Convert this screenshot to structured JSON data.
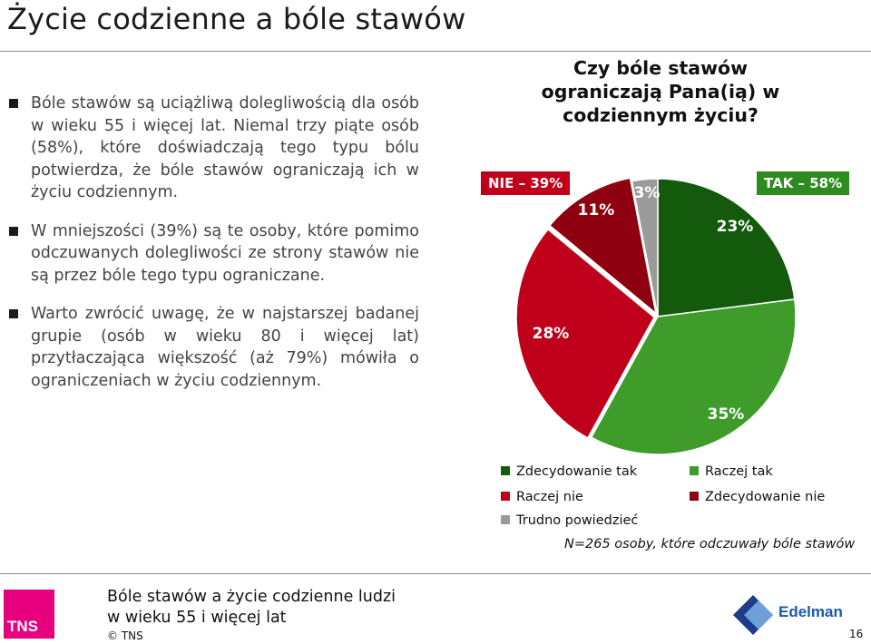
{
  "title": "Życie codzienne a bóle stawów",
  "bullets": [
    "Bóle stawów są uciążliwą dolegliwością dla osób w wieku 55 i więcej lat. Niemal trzy piąte osób (58%), które doświadczają tego typu bólu potwierdza, że bóle stawów ograniczają ich w życiu codziennym.",
    "W mniejszości (39%) są te osoby, które pomimo odczuwanych dolegliwości ze strony stawów nie są przez bóle tego typu ograniczane.",
    "Warto zwrócić uwagę, że w najstarszej badanej grupie (osób w wieku 80 i więcej lat) przytłaczająca większość (aż 79%) mówiła o ograniczeniach w życiu codziennym."
  ],
  "chart_data": {
    "type": "pie",
    "title": "Czy bóle stawów ograniczają Pana(ią) w codziennym życiu?",
    "slices": [
      {
        "label": "Zdecydowanie tak",
        "value": 23,
        "display": "23%",
        "color": "#145a0c"
      },
      {
        "label": "Raczej tak",
        "value": 35,
        "display": "35%",
        "color": "#3f9b2a"
      },
      {
        "label": "Raczej nie",
        "value": 28,
        "display": "28%",
        "color": "#c0001a"
      },
      {
        "label": "Zdecydowanie nie",
        "value": 11,
        "display": "11%",
        "color": "#8e0010"
      },
      {
        "label": "Trudno powiedzieć",
        "value": 3,
        "display": "3%",
        "color": "#9b9b9b"
      }
    ],
    "groups": [
      {
        "label": "TAK – 58%",
        "color": "#2e8b1f"
      },
      {
        "label": "NIE – 39%",
        "color": "#c0001a"
      }
    ],
    "legend_placement": "bottom"
  },
  "note": "N=265 osoby, które odczuwały bóle  stawów",
  "footer": {
    "subtitle_line1": "Bóle stawów a życie codzienne ludzi",
    "subtitle_line2": "w wieku 55 i więcej lat",
    "copyright": "© TNS",
    "logo_left": "TNS",
    "logo_right": "Edelman",
    "page_number": "16"
  },
  "icons": {
    "bullet": "square-bullet-icon",
    "logo_left": "tns-logo",
    "logo_right": "edelman-logo"
  }
}
